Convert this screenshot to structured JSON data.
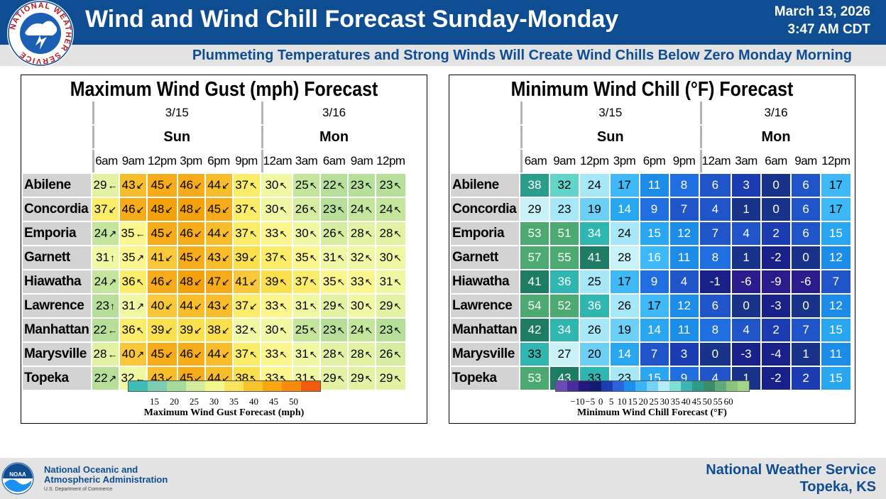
{
  "header": {
    "title": "Wind and Wind Chill Forecast Sunday-Monday",
    "date_line1": "March 13, 2026",
    "date_line2": "3:47 AM CDT",
    "subtitle": "Plummeting Temperatures and Strong Winds Will Create Wind Chills Below Zero Monday Morning",
    "logo_ring_text": "NATIONAL WEATHER SERVICE",
    "colors": {
      "header_bg": "#0f4d92",
      "accent_text": "#0f4d92"
    }
  },
  "columns": {
    "dates": [
      "3/15",
      "3/16"
    ],
    "days": [
      "Sun",
      "Mon"
    ],
    "times": [
      "6am",
      "9am",
      "12pm",
      "3pm",
      "6pm",
      "9pm",
      "12am",
      "3am",
      "6am",
      "9am",
      "12pm"
    ]
  },
  "gust": {
    "title": "Maximum Wind Gust (mph) Forecast",
    "legend_ticks": [
      "15",
      "20",
      "25",
      "30",
      "35",
      "40",
      "45",
      "50"
    ],
    "legend_title": "Maximum Wind Gust Forecast (mph)",
    "legend_colors": [
      "#3cbcb4",
      "#7dccb4",
      "#a3dc9c",
      "#d2ec9c",
      "#f4f88c",
      "#f8e45c",
      "#f8c42c",
      "#f8a80c",
      "#f88a0c",
      "#f45a0c"
    ],
    "rows": [
      {
        "city": "Abilene",
        "values": [
          29,
          43,
          45,
          46,
          44,
          37,
          30,
          25,
          22,
          23,
          23
        ],
        "dirs": [
          "W",
          "SW",
          "SW",
          "SW",
          "SW",
          "NW",
          "NW",
          "NW",
          "NW",
          "NW",
          "NW"
        ]
      },
      {
        "city": "Concordia",
        "values": [
          37,
          46,
          48,
          48,
          45,
          37,
          30,
          26,
          23,
          24,
          24
        ],
        "dirs": [
          "SW",
          "SW",
          "SW",
          "SW",
          "SW",
          "NW",
          "NW",
          "NW",
          "NW",
          "NW",
          "NW"
        ]
      },
      {
        "city": "Emporia",
        "values": [
          24,
          35,
          45,
          46,
          44,
          37,
          33,
          30,
          26,
          28,
          28
        ],
        "dirs": [
          "NE",
          "W",
          "SW",
          "SW",
          "SW",
          "NW",
          "NW",
          "NW",
          "NW",
          "NW",
          "NW"
        ]
      },
      {
        "city": "Garnett",
        "values": [
          31,
          35,
          41,
          45,
          43,
          39,
          37,
          35,
          31,
          32,
          30
        ],
        "dirs": [
          "N",
          "NE",
          "SW",
          "SW",
          "SW",
          "SW",
          "NW",
          "NW",
          "NW",
          "NW",
          "NW"
        ]
      },
      {
        "city": "Hiawatha",
        "values": [
          24,
          36,
          46,
          48,
          47,
          41,
          39,
          37,
          35,
          33,
          31
        ],
        "dirs": [
          "NE",
          "NW",
          "SW",
          "SW",
          "SW",
          "SW",
          "NW",
          "NW",
          "NW",
          "NW",
          "NW"
        ]
      },
      {
        "city": "Lawrence",
        "values": [
          23,
          31,
          40,
          44,
          43,
          37,
          33,
          31,
          29,
          30,
          29
        ],
        "dirs": [
          "N",
          "NE",
          "SW",
          "SW",
          "SW",
          "SW",
          "NW",
          "NW",
          "NW",
          "NW",
          "NW"
        ]
      },
      {
        "city": "Manhattan",
        "values": [
          22,
          36,
          39,
          39,
          38,
          32,
          30,
          25,
          23,
          24,
          23
        ],
        "dirs": [
          "W",
          "NW",
          "SW",
          "SW",
          "SW",
          "NW",
          "NW",
          "NW",
          "NW",
          "NW",
          "NW"
        ]
      },
      {
        "city": "Marysville",
        "values": [
          28,
          40,
          45,
          46,
          44,
          37,
          33,
          31,
          28,
          28,
          26
        ],
        "dirs": [
          "W",
          "NE",
          "SW",
          "SW",
          "SW",
          "NW",
          "NW",
          "NW",
          "NW",
          "NW",
          "NW"
        ]
      },
      {
        "city": "Topeka",
        "values": [
          22,
          32,
          43,
          45,
          44,
          38,
          33,
          31,
          29,
          29,
          29
        ],
        "dirs": [
          "NE",
          "W",
          "SW",
          "SW",
          "SW",
          "NW",
          "NW",
          "NW",
          "NW",
          "NW",
          "NW"
        ]
      }
    ]
  },
  "chill": {
    "title": "Minimum Wind Chill (°F) Forecast",
    "legend_ticks": [
      "−10",
      "−5",
      "0",
      "5",
      "10",
      "15",
      "20",
      "25",
      "30",
      "35",
      "40",
      "45",
      "50",
      "55",
      "60"
    ],
    "legend_title": "Minimum Wind Chill Forecast (°F)",
    "legend_colors": [
      "#6e4ab4",
      "#4b2c9c",
      "#24187c",
      "#101c6c",
      "#1c3cb4",
      "#2c64e0",
      "#1c90f0",
      "#3cb4f8",
      "#74d4f8",
      "#b4ecf8",
      "#7ce0d4",
      "#3cb4b4",
      "#2c9c8c",
      "#3c8c6c",
      "#5cac7c",
      "#8cc47c",
      "#a4d48c"
    ],
    "rows": [
      {
        "city": "Abilene",
        "values": [
          38,
          32,
          24,
          17,
          11,
          8,
          6,
          3,
          0,
          6,
          17
        ]
      },
      {
        "city": "Concordia",
        "values": [
          29,
          23,
          19,
          14,
          9,
          7,
          4,
          1,
          0,
          6,
          17
        ]
      },
      {
        "city": "Emporia",
        "values": [
          53,
          51,
          34,
          24,
          15,
          12,
          7,
          4,
          2,
          6,
          15
        ]
      },
      {
        "city": "Garnett",
        "values": [
          57,
          55,
          41,
          28,
          16,
          11,
          8,
          1,
          -2,
          0,
          12
        ]
      },
      {
        "city": "Hiawatha",
        "values": [
          41,
          36,
          25,
          17,
          9,
          4,
          -1,
          -6,
          -9,
          -6,
          7
        ]
      },
      {
        "city": "Lawrence",
        "values": [
          54,
          52,
          36,
          26,
          17,
          12,
          6,
          0,
          -3,
          0,
          12
        ]
      },
      {
        "city": "Manhattan",
        "values": [
          42,
          34,
          26,
          19,
          14,
          11,
          8,
          4,
          2,
          7,
          15
        ]
      },
      {
        "city": "Marysville",
        "values": [
          33,
          27,
          20,
          14,
          7,
          3,
          0,
          -3,
          -4,
          1,
          11
        ]
      },
      {
        "city": "Topeka",
        "values": [
          53,
          43,
          33,
          23,
          15,
          9,
          4,
          1,
          -2,
          2,
          15
        ]
      }
    ]
  },
  "footer": {
    "noaa_line1": "National Oceanic and",
    "noaa_line2": "Atmospheric Administration",
    "noaa_line3": "U.S. Department of Commerce",
    "noaa_logo_text": "NOAA",
    "nws_line1": "National Weather Service",
    "nws_line2": "Topeka, KS"
  }
}
